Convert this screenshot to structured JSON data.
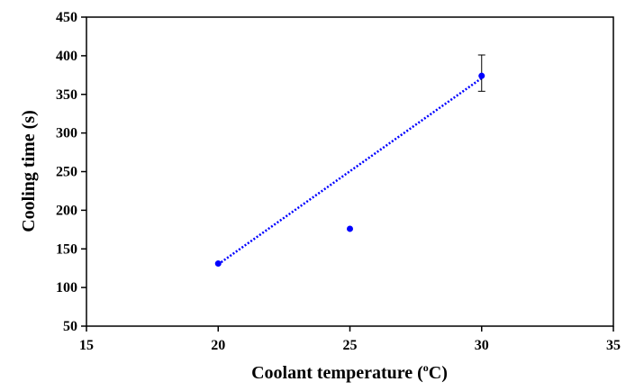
{
  "chart_data": {
    "type": "scatter",
    "xlabel_prefix": "Coolant temperature (",
    "xlabel_sup": "o",
    "xlabel_suffix": "C)",
    "ylabel": "Cooling time (s)",
    "xlim": [
      15,
      35
    ],
    "ylim": [
      50,
      450
    ],
    "xticks": [
      15,
      20,
      25,
      30,
      35
    ],
    "yticks": [
      50,
      100,
      150,
      200,
      250,
      300,
      350,
      400,
      450
    ],
    "grid": false,
    "legend": "none",
    "series": [
      {
        "points": [
          {
            "x": 20,
            "y": 131
          },
          {
            "x": 25,
            "y": 176
          },
          {
            "x": 30,
            "y": 374,
            "err_low": 354,
            "err_high": 401
          }
        ],
        "color": "#0000ff"
      }
    ],
    "trendline": {
      "style": "dotted",
      "color": "#0000ff",
      "from": {
        "x": 20,
        "y": 130
      },
      "to": {
        "x": 30,
        "y": 371
      }
    }
  }
}
